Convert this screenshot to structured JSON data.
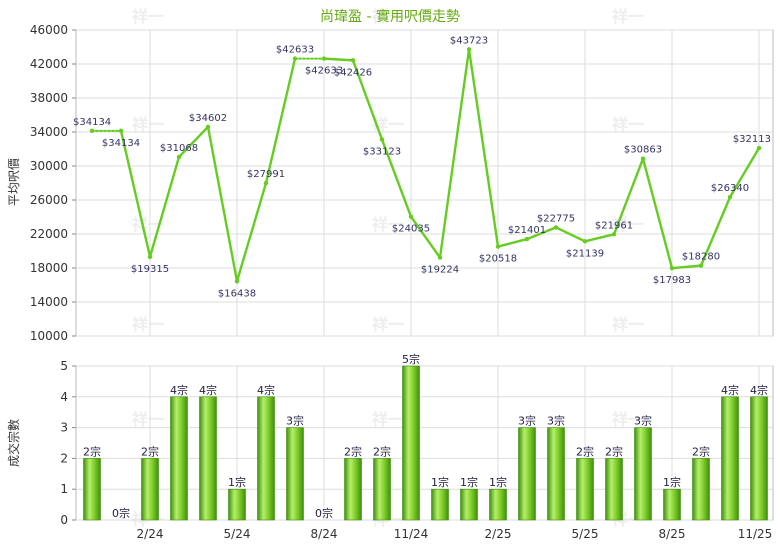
{
  "chart_data": [
    {
      "type": "line",
      "title": "尚瑋盈 - 實用呎價走勢",
      "ylabel": "平均呎價",
      "ylim": [
        10000,
        46000
      ],
      "yticks": [
        10000,
        14000,
        18000,
        22000,
        26000,
        30000,
        34000,
        38000,
        42000,
        46000
      ],
      "grid": true,
      "series": [
        {
          "color": "#66cc22",
          "values": [
            34134,
            34134,
            19315,
            31068,
            34602,
            16438,
            27991,
            42633,
            42633,
            42426,
            33123,
            24035,
            19224,
            43723,
            20518,
            21401,
            22775,
            21139,
            21961,
            30863,
            17983,
            18280,
            26340,
            32113
          ],
          "labels": [
            "$34134",
            "$34134",
            "$19315",
            "$31068",
            "$34602",
            "$16438",
            "$27991",
            "$42633",
            "$42633",
            "$42426",
            "$33123",
            "$24035",
            "$19224",
            "$43723",
            "$20518",
            "$21401",
            "$22775",
            "$21139",
            "$21961",
            "$30863",
            "$17983",
            "$18280",
            "$26340",
            "$32113"
          ]
        }
      ]
    },
    {
      "type": "bar",
      "ylabel": "成交宗數",
      "ylim": [
        0,
        5
      ],
      "yticks": [
        0,
        1,
        2,
        3,
        4,
        5
      ],
      "x_tick_labels": [
        "",
        "",
        "2/24",
        "",
        "",
        "5/24",
        "",
        "",
        "8/24",
        "",
        "",
        "11/24",
        "",
        "",
        "2/25",
        "",
        "",
        "5/25",
        "",
        "",
        "8/25",
        "",
        "",
        "11/25"
      ],
      "grid": true,
      "color": "#66bb22",
      "values": [
        2,
        0,
        2,
        4,
        4,
        1,
        4,
        3,
        0,
        2,
        2,
        5,
        1,
        1,
        1,
        3,
        3,
        2,
        2,
        3,
        1,
        2,
        4,
        4
      ],
      "labels": [
        "2宗",
        "0宗",
        "2宗",
        "4宗",
        "4宗",
        "1宗",
        "4宗",
        "3宗",
        "0宗",
        "2宗",
        "2宗",
        "5宗",
        "1宗",
        "1宗",
        "1宗",
        "3宗",
        "3宗",
        "2宗",
        "2宗",
        "3宗",
        "1宗",
        "2宗",
        "4宗",
        "4宗"
      ]
    }
  ],
  "watermark": "祥一"
}
